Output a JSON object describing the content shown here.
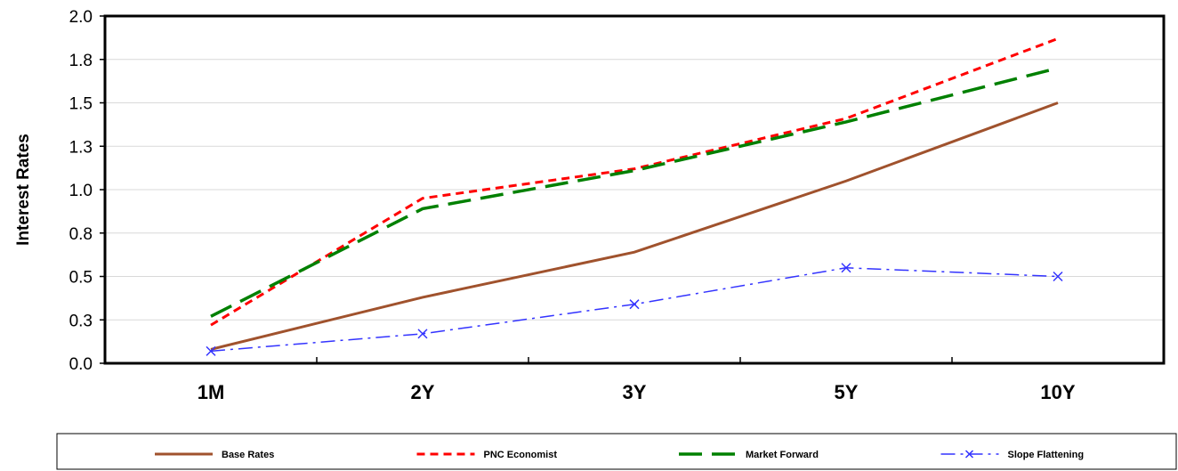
{
  "chart_data": {
    "type": "line",
    "ylabel": "Interest Rates",
    "categories": [
      "1M",
      "2Y",
      "3Y",
      "5Y",
      "10Y"
    ],
    "ylim": [
      0.0,
      2.0
    ],
    "y_ticks": [
      "0.0",
      "0.3",
      "0.5",
      "0.8",
      "1.0",
      "1.3",
      "1.5",
      "1.8",
      "2.0"
    ],
    "grid": true,
    "legend_position": "bottom",
    "series": [
      {
        "name": "Base Rates",
        "values": [
          0.08,
          0.38,
          0.64,
          1.05,
          1.5
        ],
        "color": "#a0522d",
        "style": "solid",
        "marker": "none"
      },
      {
        "name": "PNC Economist",
        "values": [
          0.22,
          0.95,
          1.12,
          1.41,
          1.87
        ],
        "color": "#ff0000",
        "style": "dashed",
        "marker": "none"
      },
      {
        "name": "Market Forward",
        "values": [
          0.27,
          0.89,
          1.11,
          1.39,
          1.7
        ],
        "color": "#008000",
        "style": "longdash",
        "marker": "none"
      },
      {
        "name": "Slope Flattening",
        "values": [
          0.07,
          0.17,
          0.34,
          0.55,
          0.5
        ],
        "color": "#3333ff",
        "style": "dashdot",
        "marker": "x"
      }
    ]
  }
}
